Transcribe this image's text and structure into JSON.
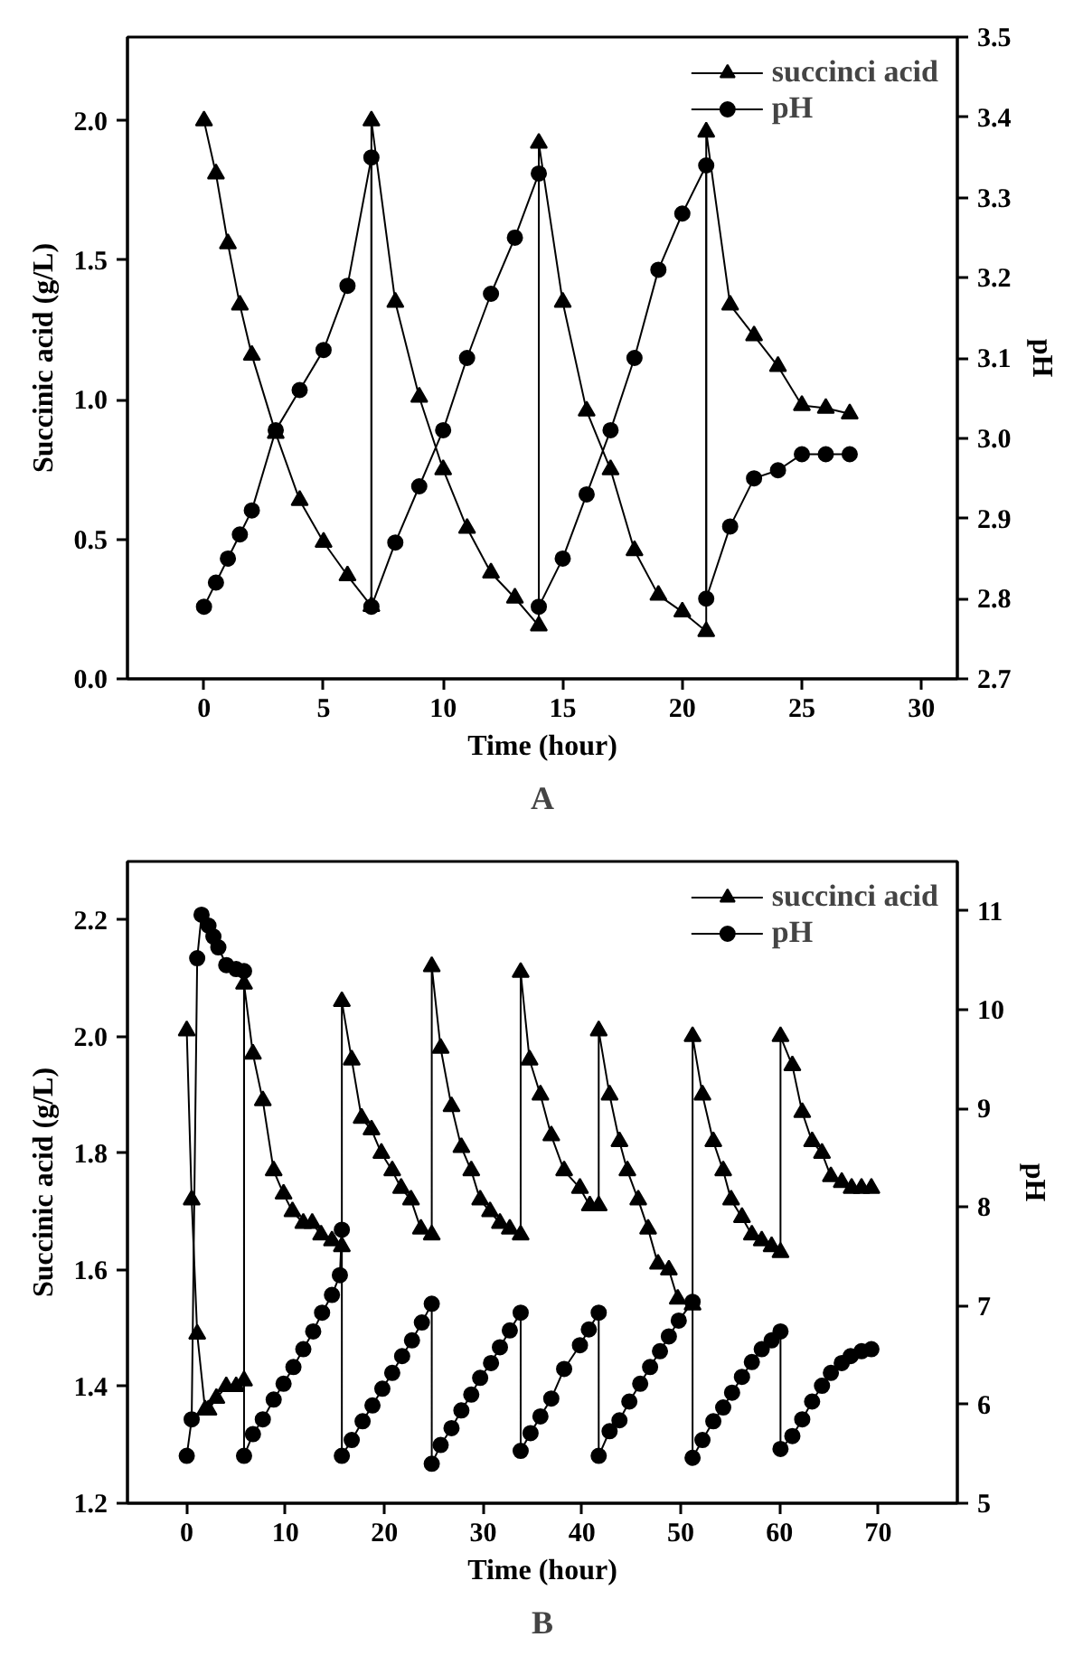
{
  "chart_data": [
    {
      "type": "line",
      "xlabel": "Time (hour)",
      "ylabel": "Succinic acid (g/L)",
      "y2label": "pH",
      "annotations": [
        "A"
      ],
      "xlim": [
        -3.2,
        31.5
      ],
      "xticks": [
        0,
        5,
        10,
        15,
        20,
        25,
        30
      ],
      "ylim": [
        0,
        2.3
      ],
      "yticks": [
        {
          "value": 0,
          "label": "0.0"
        },
        0.5,
        {
          "value": 1,
          "label": "1.0"
        },
        1.5,
        {
          "value": 2,
          "label": "2.0"
        }
      ],
      "y2lim": [
        2.7,
        3.5
      ],
      "y2ticks": [
        2.7,
        2.8,
        2.9,
        {
          "value": 3,
          "label": "3.0"
        },
        3.1,
        3.2,
        3.3,
        3.4,
        3.5
      ],
      "legend": "top right",
      "grid": false,
      "series": [
        {
          "name": "succinci acid",
          "color": "#000000",
          "marker": "triangle",
          "x": [
            0,
            0.5,
            1,
            1.5,
            2,
            3,
            4,
            5,
            6,
            7,
            7,
            8,
            9,
            10,
            11,
            12,
            13,
            14,
            14,
            15,
            16,
            17,
            18,
            19,
            20,
            21,
            21,
            22,
            23,
            24,
            25,
            26,
            27
          ],
          "values": [
            2.0,
            1.81,
            1.56,
            1.34,
            1.16,
            0.88,
            0.64,
            0.49,
            0.37,
            0.26,
            2.0,
            1.35,
            1.01,
            0.75,
            0.54,
            0.38,
            0.29,
            0.19,
            1.92,
            1.35,
            0.96,
            0.75,
            0.46,
            0.3,
            0.24,
            0.17,
            1.96,
            1.34,
            1.23,
            1.12,
            0.98,
            0.97,
            0.95
          ]
        },
        {
          "name": "pH",
          "color": "#000000",
          "marker": "circle",
          "axis": "y2",
          "x": [
            0,
            0.5,
            1,
            1.5,
            2,
            3,
            4,
            5,
            6,
            7,
            7,
            8,
            9,
            10,
            11,
            12,
            13,
            14,
            14,
            15,
            16,
            17,
            18,
            19,
            20,
            21,
            21,
            22,
            23,
            24,
            25,
            26,
            27
          ],
          "values": [
            2.79,
            2.82,
            2.85,
            2.88,
            2.91,
            3.01,
            3.06,
            3.11,
            3.19,
            3.35,
            2.79,
            2.87,
            2.94,
            3.01,
            3.1,
            3.18,
            3.25,
            3.33,
            2.79,
            2.85,
            2.93,
            3.01,
            3.1,
            3.21,
            3.28,
            3.34,
            2.8,
            2.89,
            2.95,
            2.96,
            2.98,
            2.98,
            2.98
          ]
        }
      ]
    },
    {
      "type": "line",
      "xlabel": "Time (hour)",
      "ylabel": "Succinic acid (g/L)",
      "y2label": "pH",
      "annotations": [
        "B"
      ],
      "xlim": [
        -6,
        78
      ],
      "xticks": [
        0,
        10,
        20,
        30,
        40,
        50,
        60,
        70
      ],
      "ylim": [
        1.2,
        2.3
      ],
      "yticks": [
        1.2,
        1.4,
        1.6,
        1.8,
        {
          "value": 2,
          "label": "2.0"
        },
        2.2
      ],
      "y2lim": [
        5,
        11.5
      ],
      "y2ticks": [
        5,
        6,
        7,
        8,
        9,
        10,
        11
      ],
      "legend": "top right",
      "grid": false,
      "series": [
        {
          "name": "succinci acid",
          "color": "#000000",
          "marker": "triangle",
          "x": [
            0,
            0.5,
            1.06,
            1.86,
            2.2,
            3,
            4,
            5,
            5.8,
            5.8,
            6.7,
            7.7,
            8.8,
            9.8,
            10.7,
            11.8,
            12.7,
            13.6,
            14.7,
            15.7,
            15.7,
            16.7,
            17.7,
            18.7,
            19.7,
            20.8,
            21.7,
            22.7,
            23.7,
            24.8,
            24.8,
            25.7,
            26.8,
            27.8,
            28.8,
            29.7,
            30.7,
            31.7,
            32.7,
            33.8,
            33.8,
            34.7,
            35.8,
            36.9,
            38.2,
            39.8,
            40.8,
            41.7,
            41.7,
            42.8,
            43.8,
            44.6,
            45.7,
            46.7,
            47.7,
            48.8,
            49.7,
            51.2,
            51.2,
            52.2,
            53.3,
            54.3,
            55.1,
            56.2,
            57.2,
            58.2,
            59.2,
            60.1,
            60.1,
            61.3,
            62.3,
            63.3,
            64.3,
            65.2,
            66.3,
            67.3,
            68.3,
            69.3
          ],
          "values": [
            2.01,
            1.72,
            1.49,
            1.36,
            1.36,
            1.38,
            1.4,
            1.4,
            1.41,
            2.09,
            1.97,
            1.89,
            1.77,
            1.73,
            1.7,
            1.68,
            1.68,
            1.66,
            1.65,
            1.64,
            2.06,
            1.96,
            1.86,
            1.84,
            1.8,
            1.77,
            1.74,
            1.72,
            1.67,
            1.66,
            2.12,
            1.98,
            1.88,
            1.81,
            1.77,
            1.72,
            1.7,
            1.68,
            1.67,
            1.66,
            2.11,
            1.96,
            1.9,
            1.83,
            1.77,
            1.74,
            1.71,
            1.71,
            2.01,
            1.9,
            1.82,
            1.77,
            1.72,
            1.67,
            1.61,
            1.6,
            1.55,
            1.54,
            2.0,
            1.9,
            1.82,
            1.77,
            1.72,
            1.69,
            1.66,
            1.65,
            1.64,
            1.63,
            2.0,
            1.95,
            1.87,
            1.82,
            1.8,
            1.76,
            1.75,
            1.74,
            1.74,
            1.74
          ]
        },
        {
          "name": "pH",
          "color": "#000000",
          "marker": "circle",
          "axis": "y2",
          "x": [
            0,
            0.5,
            1.06,
            1.5,
            2.2,
            2.7,
            3.2,
            4,
            5,
            5.8,
            5.8,
            6.7,
            7.7,
            8.8,
            9.8,
            10.8,
            11.8,
            12.8,
            13.7,
            14.7,
            15.5,
            15.7,
            15.7,
            16.7,
            17.8,
            18.8,
            19.8,
            20.8,
            21.8,
            22.8,
            23.8,
            24.8,
            24.8,
            25.7,
            26.8,
            27.8,
            28.8,
            29.7,
            30.8,
            31.7,
            32.7,
            33.8,
            33.8,
            34.8,
            35.8,
            36.9,
            38.2,
            39.8,
            40.7,
            41.7,
            41.7,
            42.8,
            43.8,
            44.8,
            45.9,
            46.9,
            47.9,
            48.8,
            49.8,
            51.2,
            51.2,
            52.2,
            53.3,
            54.3,
            55.2,
            56.2,
            57.2,
            58.2,
            59.2,
            60.1,
            60.1,
            61.3,
            62.3,
            63.3,
            64.3,
            65.2,
            66.3,
            67.2,
            68.3,
            69.3
          ],
          "values": [
            5.48,
            5.85,
            10.52,
            10.96,
            10.85,
            10.74,
            10.63,
            10.45,
            10.41,
            10.39,
            5.48,
            5.7,
            5.85,
            6.05,
            6.21,
            6.38,
            6.56,
            6.74,
            6.93,
            7.11,
            7.31,
            7.77,
            5.48,
            5.64,
            5.83,
            5.99,
            6.16,
            6.32,
            6.49,
            6.65,
            6.83,
            7.02,
            5.4,
            5.59,
            5.76,
            5.94,
            6.1,
            6.27,
            6.42,
            6.58,
            6.75,
            6.93,
            5.53,
            5.71,
            5.88,
            6.06,
            6.36,
            6.6,
            6.76,
            6.93,
            5.48,
            5.73,
            5.84,
            6.03,
            6.21,
            6.38,
            6.54,
            6.69,
            6.85,
            7.04,
            5.46,
            5.64,
            5.83,
            5.97,
            6.12,
            6.28,
            6.43,
            6.56,
            6.65,
            6.74,
            5.55,
            5.68,
            5.85,
            6.03,
            6.19,
            6.32,
            6.42,
            6.49,
            6.54,
            6.56
          ]
        }
      ]
    }
  ]
}
